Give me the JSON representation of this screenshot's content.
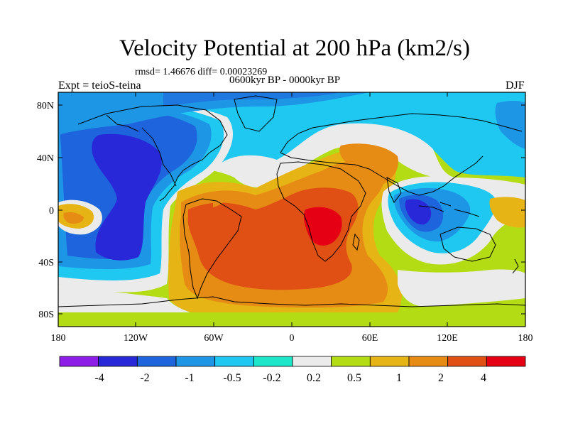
{
  "title": "Velocity Potential at 200 hPa (km2/s)",
  "stats": "rmsd= 1.46676 diff= 0.00023269",
  "subtitle": "0600kyr BP - 0000kyr BP",
  "experiment": "Expt = teioS-teina",
  "season": "DJF",
  "y_axis_labels": [
    "80N",
    "40N",
    "0",
    "40S",
    "80S"
  ],
  "x_axis_labels": [
    "180",
    "120W",
    "60W",
    "0",
    "60E",
    "120E",
    "180"
  ],
  "colorbar": {
    "colors": [
      "#8c1ee6",
      "#2828d8",
      "#1e64dc",
      "#1e96e6",
      "#1ec8f0",
      "#1ee6c8",
      "#ebebeb",
      "#b4dc14",
      "#e6b414",
      "#e68c14",
      "#e05014",
      "#e60014"
    ],
    "labels": [
      "-4",
      "-2",
      "-1",
      "-0.5",
      "-0.2",
      "0.2",
      "0.5",
      "1",
      "2",
      "4"
    ]
  },
  "palette": {
    "strong_negative": "#2828d8",
    "negative": "#1e64dc",
    "weak_negative": "#1e96e6",
    "slight_negative": "#1ec8f0",
    "near_zero": "#ebebeb",
    "slight_positive": "#b4dc14",
    "weak_positive": "#e6b414",
    "positive": "#e68c14",
    "strong_positive": "#e05014",
    "max_positive": "#e60014"
  }
}
